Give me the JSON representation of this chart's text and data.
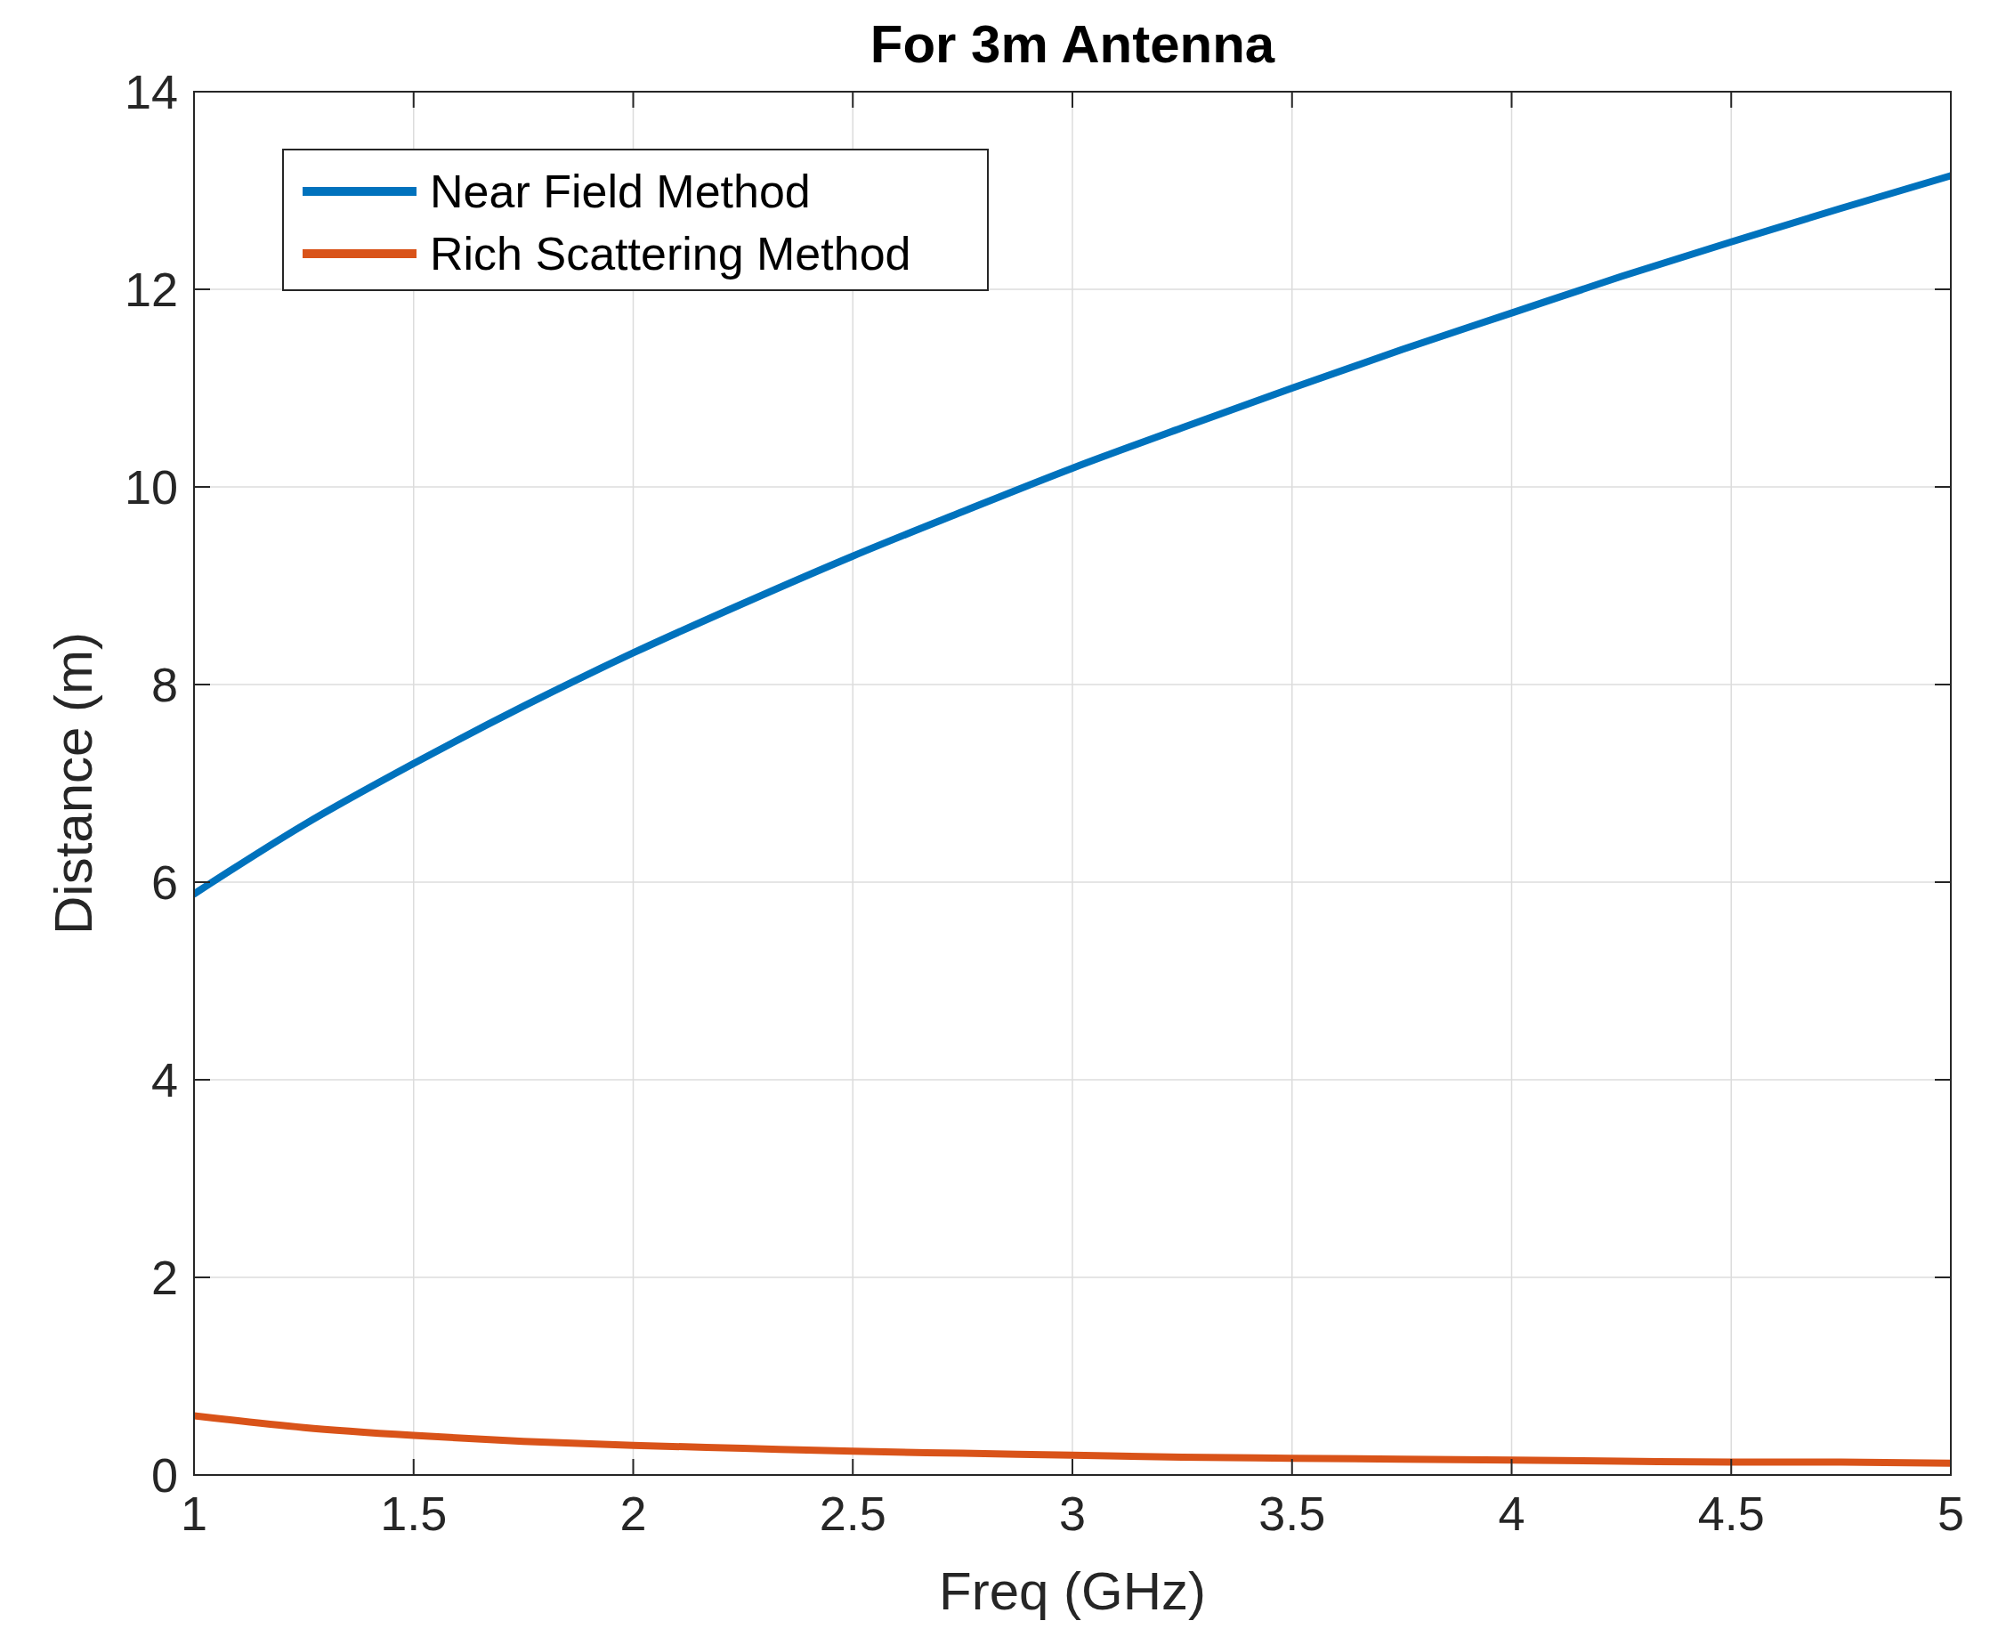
{
  "chart_data": {
    "type": "line",
    "title": "For 3m Antenna",
    "xlabel": "Freq (GHz)",
    "ylabel": "Distance (m)",
    "x": [
      1,
      1.25,
      1.5,
      1.75,
      2,
      2.25,
      2.5,
      2.75,
      3,
      3.25,
      3.5,
      3.75,
      4,
      4.25,
      4.5,
      4.75,
      5
    ],
    "series": [
      {
        "name": "Near Field Method",
        "color": "#0072bd",
        "values": [
          5.88,
          6.58,
          7.2,
          7.78,
          8.32,
          8.82,
          9.3,
          9.75,
          10.19,
          10.6,
          11.0,
          11.39,
          11.76,
          12.13,
          12.48,
          12.82,
          13.15
        ]
      },
      {
        "name": "Rich Scattering Method",
        "color": "#d95319",
        "values": [
          0.6,
          0.48,
          0.4,
          0.34,
          0.3,
          0.27,
          0.24,
          0.22,
          0.2,
          0.18,
          0.17,
          0.16,
          0.15,
          0.14,
          0.13,
          0.13,
          0.12
        ]
      }
    ],
    "xlim": [
      1,
      5
    ],
    "xticks": [
      1,
      1.5,
      2,
      2.5,
      3,
      3.5,
      4,
      4.5,
      5
    ],
    "ylim": [
      0,
      14
    ],
    "yticks": [
      0,
      2,
      4,
      6,
      8,
      10,
      12,
      14
    ],
    "grid": true,
    "legend": "top left",
    "line_style": "solid"
  }
}
